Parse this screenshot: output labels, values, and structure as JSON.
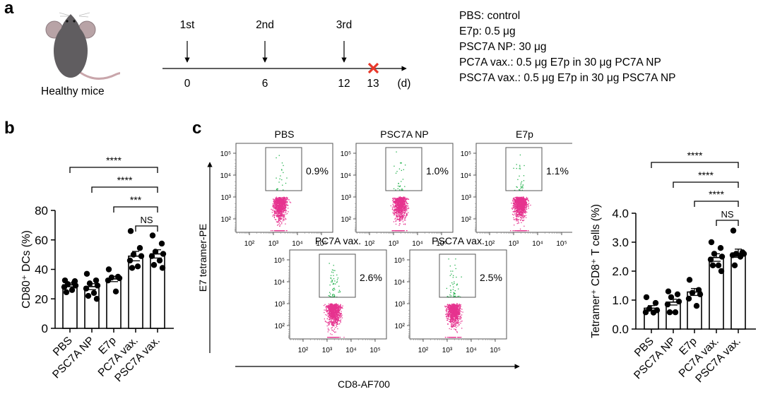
{
  "panel_a": {
    "letter": "a",
    "mouse_label": "Healthy mice",
    "timeline": {
      "doses": [
        {
          "label": "1st",
          "day": "0"
        },
        {
          "label": "2nd",
          "day": "6"
        },
        {
          "label": "3rd",
          "day": "12"
        }
      ],
      "endpoint_day": "13",
      "unit": "(d)",
      "endpoint_color": "#e8382a"
    },
    "legend": [
      "PBS: control",
      "E7p: 0.5 μg",
      "PSC7A NP: 30 μg",
      "PC7A vax.: 0.5 μg E7p in 30 μg PC7A NP",
      "PSC7A vax.: 0.5 μg E7p in 30 μg PSC7A NP"
    ]
  },
  "panel_b": {
    "letter": "b"
  },
  "panel_c": {
    "letter": "c",
    "flow_ylabel": "E7 tetramer-PE",
    "flow_xlabel": "CD8-AF700",
    "flow_ticks": [
      "10²",
      "10³",
      "10⁴",
      "10⁵"
    ],
    "gate_color": "#22b14c",
    "population_color": "#e6338f",
    "flow_plots": [
      {
        "title": "PBS",
        "gate_percent": "0.9%"
      },
      {
        "title": "PSC7A NP",
        "gate_percent": "1.0%"
      },
      {
        "title": "E7p",
        "gate_percent": "1.1%"
      },
      {
        "title": "PC7A vax.",
        "gate_percent": "2.6%"
      },
      {
        "title": "PSC7A vax.",
        "gate_percent": "2.5%"
      }
    ]
  },
  "chart_data": [
    {
      "id": "b",
      "type": "bar",
      "title": "",
      "xlabel": "",
      "ylabel": "CD80⁺ DCs (%)",
      "ylim": [
        0,
        80
      ],
      "yticks": [
        0,
        20,
        40,
        60,
        80
      ],
      "ytick_labels": [
        "0",
        "20",
        "40",
        "60",
        "80"
      ],
      "categories": [
        "PBS",
        "PSC7A NP",
        "E7p",
        "PC7A vax.",
        "PSC7A vax."
      ],
      "values": [
        29.5,
        28.3,
        33.5,
        49,
        50.5
      ],
      "sem": [
        1.3,
        2.0,
        1.8,
        3.2,
        2.8
      ],
      "points": [
        [
          32.5,
          31,
          30,
          29,
          28,
          26,
          24.5,
          32
        ],
        [
          37,
          32.5,
          30.5,
          29,
          27,
          24,
          22,
          20
        ],
        [
          40,
          35,
          34.5,
          34,
          32.5,
          25
        ],
        [
          66,
          54.5,
          50,
          49,
          46,
          42,
          41
        ],
        [
          63,
          57.5,
          52,
          50.5,
          49,
          46,
          43,
          41
        ]
      ],
      "significance": [
        {
          "from": "PBS",
          "to": "PSC7A vax.",
          "label": "****"
        },
        {
          "from": "PSC7A NP",
          "to": "PSC7A vax.",
          "label": "****"
        },
        {
          "from": "E7p",
          "to": "PSC7A vax.",
          "label": "***"
        },
        {
          "from": "PC7A vax.",
          "to": "PSC7A vax.",
          "label": "NS"
        }
      ]
    },
    {
      "id": "c-summary",
      "type": "bar",
      "title": "",
      "xlabel": "",
      "ylabel": "Tetramer⁺ CD8⁺ T cells (%)",
      "ylim": [
        0,
        4.0
      ],
      "yticks": [
        0,
        1,
        2,
        3,
        4
      ],
      "ytick_labels": [
        "0.0",
        "1.0",
        "2.0",
        "3.0",
        "4.0"
      ],
      "categories": [
        "PBS",
        "PSC7A NP",
        "E7p",
        "PC7A vax.",
        "PSC7A vax."
      ],
      "values": [
        0.72,
        0.93,
        1.28,
        2.47,
        2.62
      ],
      "sem": [
        0.09,
        0.1,
        0.12,
        0.13,
        0.14
      ],
      "points": [
        [
          1.1,
          0.9,
          0.7,
          0.65,
          0.58,
          0.57
        ],
        [
          1.3,
          1.2,
          1.1,
          0.95,
          0.85,
          0.58,
          0.58
        ],
        [
          1.7,
          1.35,
          1.25,
          1.2,
          1.05,
          0.8
        ],
        [
          3.0,
          2.8,
          2.6,
          2.5,
          2.4,
          2.2,
          2.2,
          2.0
        ],
        [
          3.4,
          2.65,
          2.6,
          2.6,
          2.55,
          2.5,
          2.2
        ]
      ],
      "significance": [
        {
          "from": "PBS",
          "to": "PSC7A vax.",
          "label": "****"
        },
        {
          "from": "PSC7A NP",
          "to": "PSC7A vax.",
          "label": "****"
        },
        {
          "from": "E7p",
          "to": "PSC7A vax.",
          "label": "****"
        },
        {
          "from": "PC7A vax.",
          "to": "PSC7A vax.",
          "label": "NS"
        }
      ]
    }
  ]
}
